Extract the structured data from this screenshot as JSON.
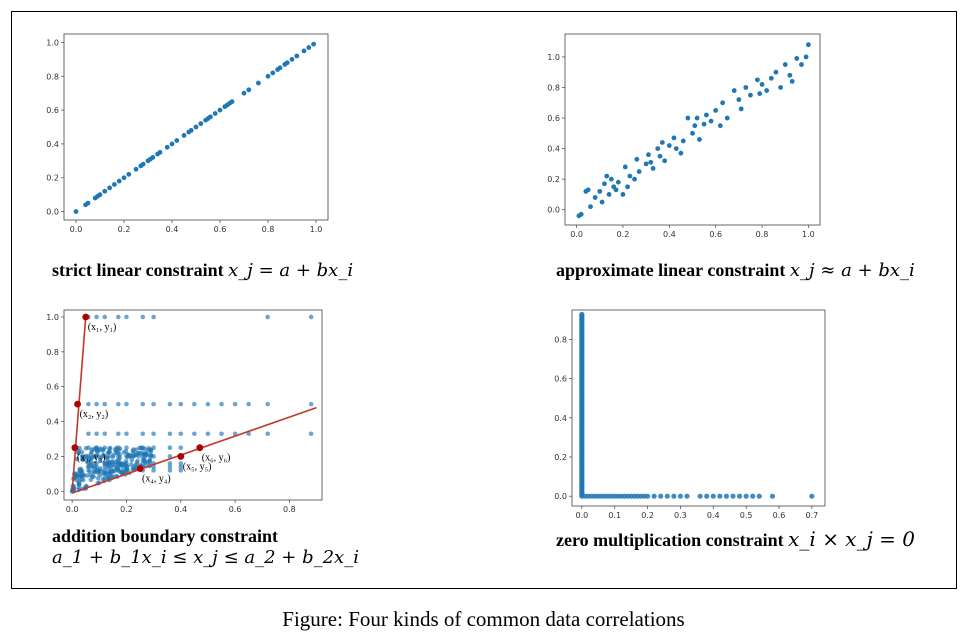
{
  "figure_caption": "Figure: Four kinds of common data correlations",
  "colors": {
    "points": "#1f77b4",
    "boundary": "#c0392b",
    "marker": "#b00000"
  },
  "captions": {
    "p1_text": "strict linear constraint",
    "p1_math": "x_j = a + bx_i",
    "p2_text": "approximate linear constraint",
    "p2_math": "x_j ≈ a + bx_i",
    "p3_text": "addition boundary constraint",
    "p3_math": "a_1 + b_1x_i ≤ x_j ≤ a_2 + b_2x_i",
    "p4_text": "zero multiplication constraint",
    "p4_math": "x_i × x_j = 0"
  },
  "chart_data": [
    {
      "type": "scatter",
      "xlim": [
        -0.05,
        1.05
      ],
      "ylim": [
        -0.05,
        1.05
      ],
      "xticks": [
        "0.0",
        "0.2",
        "0.4",
        "0.6",
        "0.8",
        "1.0"
      ],
      "yticks": [
        "0.0",
        "0.2",
        "0.4",
        "0.6",
        "0.8",
        "1.0"
      ],
      "x": [
        0.0,
        0.04,
        0.05,
        0.08,
        0.09,
        0.1,
        0.12,
        0.14,
        0.16,
        0.18,
        0.2,
        0.22,
        0.25,
        0.27,
        0.28,
        0.3,
        0.31,
        0.32,
        0.34,
        0.35,
        0.38,
        0.4,
        0.42,
        0.45,
        0.47,
        0.48,
        0.5,
        0.52,
        0.54,
        0.55,
        0.56,
        0.58,
        0.6,
        0.62,
        0.63,
        0.64,
        0.65,
        0.7,
        0.72,
        0.76,
        0.8,
        0.82,
        0.84,
        0.85,
        0.87,
        0.88,
        0.9,
        0.92,
        0.95,
        0.97,
        0.99
      ],
      "y": [
        0.0,
        0.04,
        0.05,
        0.08,
        0.09,
        0.1,
        0.12,
        0.14,
        0.16,
        0.18,
        0.2,
        0.22,
        0.25,
        0.27,
        0.28,
        0.3,
        0.31,
        0.32,
        0.34,
        0.35,
        0.38,
        0.4,
        0.42,
        0.45,
        0.47,
        0.48,
        0.5,
        0.52,
        0.54,
        0.55,
        0.56,
        0.58,
        0.6,
        0.62,
        0.63,
        0.64,
        0.65,
        0.7,
        0.72,
        0.76,
        0.8,
        0.82,
        0.84,
        0.85,
        0.87,
        0.88,
        0.9,
        0.92,
        0.95,
        0.97,
        0.99
      ]
    },
    {
      "type": "scatter",
      "xlim": [
        -0.05,
        1.05
      ],
      "ylim": [
        -0.1,
        1.15
      ],
      "xticks": [
        "0.0",
        "0.2",
        "0.4",
        "0.6",
        "0.8",
        "1.0"
      ],
      "yticks": [
        "0.0",
        "0.2",
        "0.4",
        "0.6",
        "0.8",
        "1.0"
      ],
      "x": [
        0.01,
        0.02,
        0.04,
        0.05,
        0.06,
        0.08,
        0.1,
        0.11,
        0.12,
        0.13,
        0.14,
        0.15,
        0.16,
        0.17,
        0.18,
        0.2,
        0.21,
        0.22,
        0.23,
        0.25,
        0.26,
        0.27,
        0.3,
        0.31,
        0.32,
        0.33,
        0.35,
        0.36,
        0.37,
        0.38,
        0.4,
        0.42,
        0.43,
        0.45,
        0.46,
        0.48,
        0.5,
        0.51,
        0.52,
        0.53,
        0.55,
        0.56,
        0.58,
        0.6,
        0.62,
        0.63,
        0.65,
        0.68,
        0.7,
        0.71,
        0.73,
        0.75,
        0.78,
        0.79,
        0.8,
        0.82,
        0.84,
        0.86,
        0.88,
        0.9,
        0.92,
        0.93,
        0.95,
        0.97,
        0.99,
        1.0
      ],
      "y": [
        -0.04,
        -0.03,
        0.12,
        0.13,
        0.02,
        0.08,
        0.12,
        0.05,
        0.17,
        0.22,
        0.1,
        0.2,
        0.15,
        0.13,
        0.18,
        0.1,
        0.28,
        0.15,
        0.22,
        0.2,
        0.33,
        0.25,
        0.3,
        0.36,
        0.31,
        0.27,
        0.4,
        0.35,
        0.44,
        0.32,
        0.42,
        0.47,
        0.4,
        0.37,
        0.45,
        0.6,
        0.5,
        0.55,
        0.6,
        0.46,
        0.56,
        0.62,
        0.58,
        0.65,
        0.55,
        0.7,
        0.6,
        0.78,
        0.72,
        0.66,
        0.8,
        0.75,
        0.85,
        0.76,
        0.82,
        0.78,
        0.86,
        0.9,
        0.8,
        0.95,
        0.88,
        0.84,
        0.99,
        0.95,
        1.0,
        1.08
      ]
    },
    {
      "type": "scatter",
      "xlim": [
        -0.03,
        0.92
      ],
      "ylim": [
        -0.05,
        1.04
      ],
      "xticks": [
        "0.0",
        "0.2",
        "0.4",
        "0.6",
        "0.8"
      ],
      "yticks": [
        "0.0",
        "0.2",
        "0.4",
        "0.6",
        "0.8",
        "1.0"
      ],
      "dense_x": [
        0.0,
        0.3
      ],
      "dense_y": [
        0.0,
        0.25
      ],
      "row_levels": [
        1.0,
        0.5,
        0.33,
        0.25,
        0.2,
        0.16,
        0.14,
        0.12
      ],
      "sparse_x": [
        0.06,
        0.09,
        0.12,
        0.17,
        0.2,
        0.26,
        0.3,
        0.36,
        0.4,
        0.45,
        0.5,
        0.55,
        0.6,
        0.65,
        0.72,
        0.88
      ],
      "boundary_upper": [
        [
          0.0,
          0.0
        ],
        [
          0.05,
          1.0
        ]
      ],
      "boundary_lower": [
        [
          0.0,
          -0.01
        ],
        [
          0.9,
          0.48
        ]
      ],
      "key_points": [
        {
          "x": 0.05,
          "y": 1.0,
          "label": "(x₁, y₁)"
        },
        {
          "x": 0.02,
          "y": 0.5,
          "label": "(x₂, y₂)"
        },
        {
          "x": 0.01,
          "y": 0.25,
          "label": "(x₃, y₃)"
        },
        {
          "x": 0.25,
          "y": 0.13,
          "label": "(x₄, y₄)"
        },
        {
          "x": 0.4,
          "y": 0.2,
          "label": "(x₅, y₅)"
        },
        {
          "x": 0.47,
          "y": 0.25,
          "label": "(x₆, y₆)"
        }
      ]
    },
    {
      "type": "scatter",
      "xlim": [
        -0.03,
        0.74
      ],
      "ylim": [
        -0.05,
        0.95
      ],
      "xticks": [
        "0.0",
        "0.1",
        "0.2",
        "0.3",
        "0.4",
        "0.5",
        "0.6",
        "0.7"
      ],
      "yticks": [
        "0.0",
        "0.2",
        "0.4",
        "0.6",
        "0.8"
      ],
      "vertical_points_max_y": 0.93,
      "horizontal_points_x": [
        0.01,
        0.02,
        0.03,
        0.04,
        0.05,
        0.06,
        0.07,
        0.08,
        0.09,
        0.1,
        0.11,
        0.12,
        0.13,
        0.14,
        0.15,
        0.16,
        0.17,
        0.18,
        0.19,
        0.2,
        0.22,
        0.24,
        0.26,
        0.28,
        0.3,
        0.32,
        0.36,
        0.38,
        0.4,
        0.42,
        0.44,
        0.46,
        0.48,
        0.5,
        0.52,
        0.54,
        0.58,
        0.7
      ]
    }
  ]
}
